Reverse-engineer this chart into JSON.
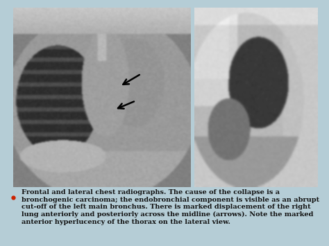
{
  "bg_color": "#a8bfc9",
  "panel_bg": "#ffffff",
  "slide_bg": "#b5cdd6",
  "text_color": "#111111",
  "bullet_color": "#cc2200",
  "caption": "Frontal and lateral chest radiographs. The cause of the collapse is a bronchogenic carcinoma; the endobronchial component is visible as an abrupt cut-off of the left main bronchus. There is marked displacement of the right lung anteriorly and posteriorly across the midline (arrows). Note the marked anterior hyperlucency of the thorax on the lateral view.",
  "caption_fontsize": 7.0,
  "fig_width": 4.74,
  "fig_height": 3.55
}
